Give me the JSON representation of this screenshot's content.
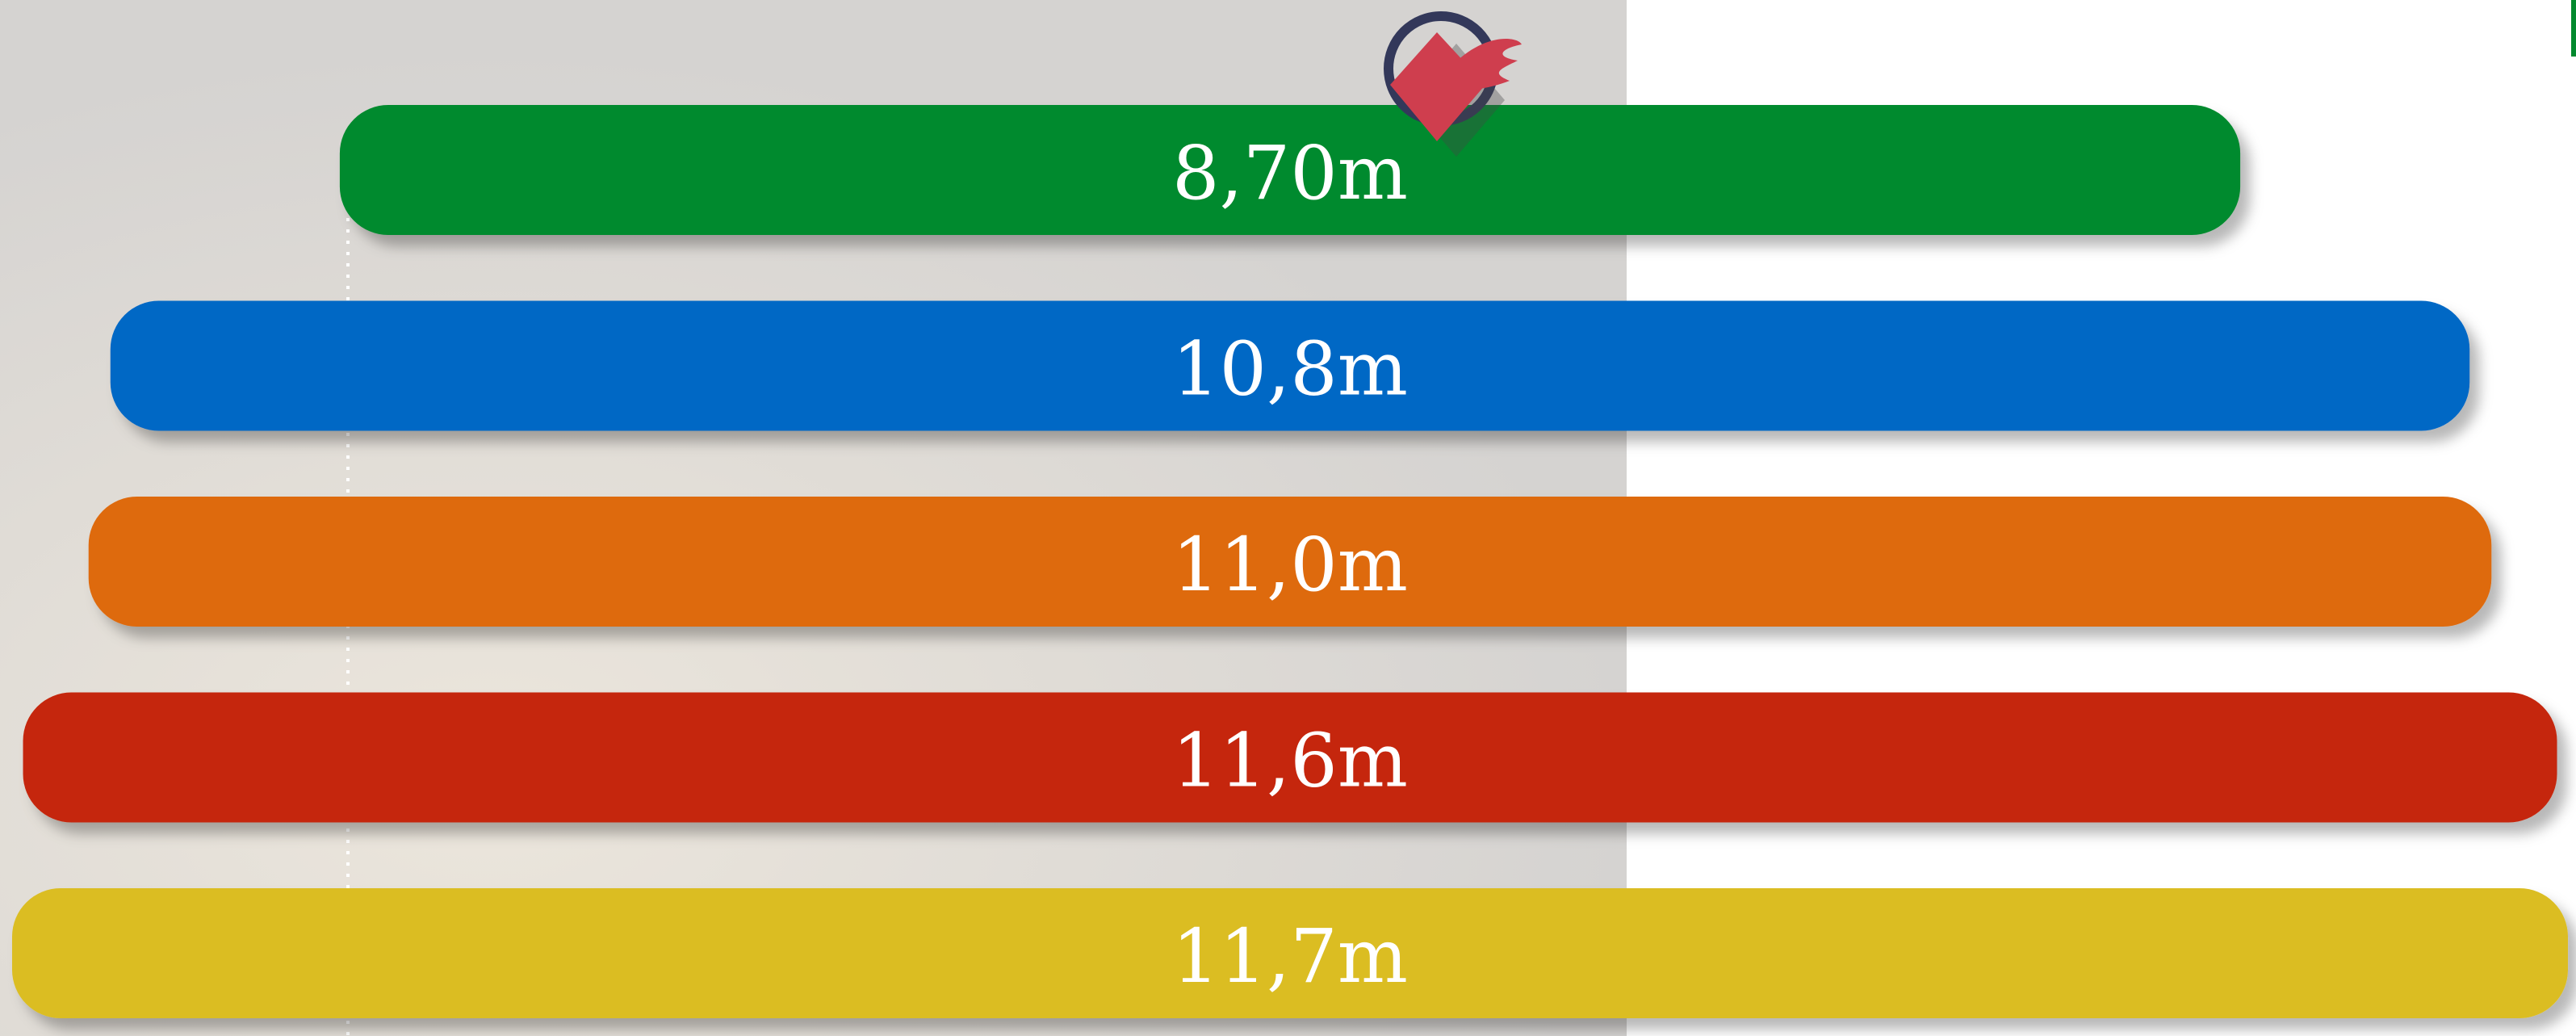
{
  "chart_data": {
    "type": "bar",
    "values": [
      8.7,
      10.8,
      11.0,
      11.6,
      11.7
    ],
    "value_labels": [
      "8,70m",
      "10,8m",
      "11,0m",
      "11,6m",
      "11,7m"
    ],
    "colors": [
      "#028a2e",
      "#0467c5",
      "#de6a10",
      "#c52508",
      "#dbbd22"
    ]
  }
}
